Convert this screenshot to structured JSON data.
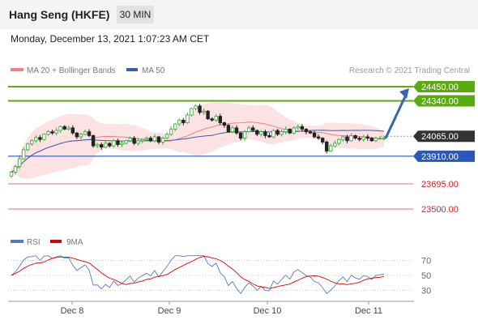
{
  "header": {
    "title": "Hang Seng (HKFE)",
    "interval": "30 MIN",
    "datetime": "Monday, December 13, 2021 1:07:23 AM CET",
    "credit": "Research © 2021 Trading Central"
  },
  "colors": {
    "bollinger": "#f08080",
    "ma50": "#3a5fa8",
    "resistance": "#5aaa10",
    "support_blue": "#2a57b8",
    "support_red": "#e07070",
    "current": "#333333",
    "arrow": "#3566b0",
    "rsi": "#5577cc",
    "rsi_ma": "#dd0000"
  },
  "chart_data": [
    {
      "type": "candlestick",
      "legend": [
        {
          "name": "MA 20 + Bollinger Bands",
          "color": "#f08080"
        },
        {
          "name": "MA 50",
          "color": "#3a5fa8"
        }
      ],
      "x_ticks": [
        "Dec 8",
        "Dec 9",
        "Dec 10",
        "Dec 11"
      ],
      "levels": [
        {
          "label": "24450.00",
          "value": 24450,
          "kind": "resistance"
        },
        {
          "label": "24340.00",
          "value": 24340,
          "kind": "resistance"
        },
        {
          "label": "24065.00",
          "value": 24065,
          "kind": "current"
        },
        {
          "label": "23910.00",
          "value": 23910,
          "kind": "support_blue"
        },
        {
          "label": "23695.00",
          "value": 23695,
          "kind": "support_red"
        },
        {
          "label": "23500.00",
          "value": 23500,
          "kind": "support_red"
        }
      ],
      "close": [
        23786,
        23830,
        23890,
        23960,
        24005,
        24030,
        24055,
        24040,
        24080,
        24100,
        24090,
        24110,
        24140,
        24120,
        24130,
        24090,
        24060,
        24080,
        24100,
        24070,
        23990,
        24000,
        23980,
        24010,
        23990,
        24030,
        24000,
        24010,
        24030,
        24050,
        24010,
        24030,
        24040,
        24050,
        24030,
        24060,
        24020,
        24050,
        24080,
        24120,
        24160,
        24190,
        24170,
        24230,
        24280,
        24300,
        24250,
        24260,
        24200,
        24190,
        24220,
        24170,
        24150,
        24100,
        24130,
        24090,
        24050,
        24100,
        24130,
        24110,
        24080,
        24100,
        24070,
        24060,
        24110,
        24080,
        24100,
        24120,
        24090,
        24130,
        24140,
        24120,
        24100,
        24090,
        24060,
        24050,
        24020,
        23950,
        23990,
        24010,
        24040,
        24060,
        24030,
        24070,
        24050,
        24040,
        24060,
        24050,
        24030,
        24050,
        24050,
        24050
      ]
    },
    {
      "type": "line",
      "series": [
        {
          "name": "RSI",
          "color": "#5577cc"
        },
        {
          "name": "9MA",
          "color": "#dd0000"
        }
      ],
      "y_ticks": [
        70,
        50,
        30
      ],
      "ylim": [
        20,
        80
      ]
    }
  ]
}
